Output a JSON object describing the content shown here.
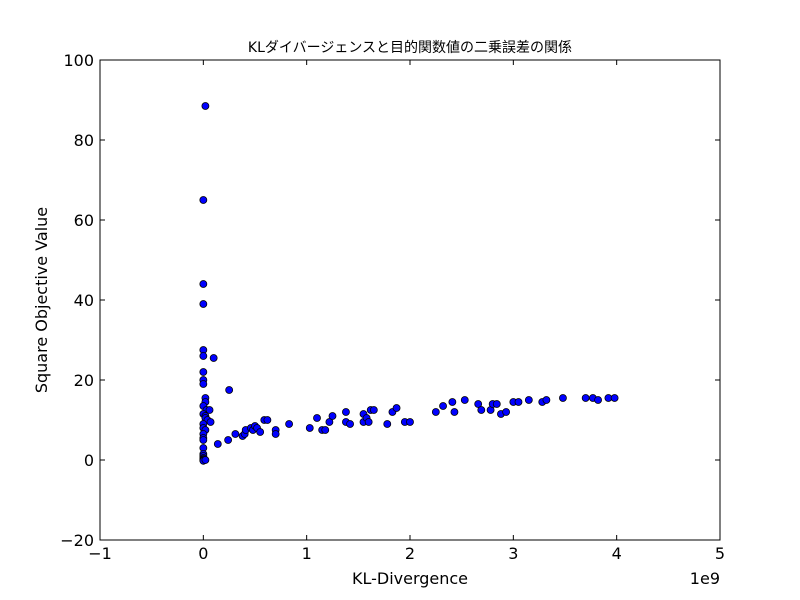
{
  "chart_data": {
    "type": "scatter",
    "title": "KLダイバージェンスと目的関数値の二乗誤差の関係",
    "xlabel": "KL-Divergence",
    "ylabel": "Square Objective Value",
    "x_offset_label": "1e9",
    "xlim": [
      -1,
      5
    ],
    "ylim": [
      -20,
      100
    ],
    "xticks": [
      -1,
      0,
      1,
      2,
      3,
      4,
      5
    ],
    "yticks": [
      -20,
      0,
      20,
      40,
      60,
      80,
      100
    ],
    "xtick_labels": [
      "−1",
      "0",
      "1",
      "2",
      "3",
      "4",
      "5"
    ],
    "ytick_labels": [
      "−20",
      "0",
      "20",
      "40",
      "60",
      "80",
      "100"
    ],
    "grid": false,
    "marker_color": "#0000ff",
    "marker_edge": "#000000",
    "points": [
      [
        0.02,
        88.5
      ],
      [
        0.0,
        65.0
      ],
      [
        0.0,
        44.0
      ],
      [
        0.0,
        39.0
      ],
      [
        0.0,
        27.5
      ],
      [
        0.0,
        26.0
      ],
      [
        0.1,
        25.5
      ],
      [
        0.0,
        22.0
      ],
      [
        0.0,
        20.0
      ],
      [
        0.0,
        19.0
      ],
      [
        0.25,
        17.5
      ],
      [
        0.02,
        15.5
      ],
      [
        0.02,
        14.5
      ],
      [
        0.0,
        13.5
      ],
      [
        0.03,
        12.5
      ],
      [
        0.06,
        12.5
      ],
      [
        0.0,
        11.5
      ],
      [
        0.02,
        11.0
      ],
      [
        0.02,
        10.5
      ],
      [
        0.04,
        10.0
      ],
      [
        0.07,
        9.5
      ],
      [
        0.0,
        9.0
      ],
      [
        0.0,
        8.0
      ],
      [
        0.02,
        7.5
      ],
      [
        0.0,
        6.5
      ],
      [
        0.0,
        5.5
      ],
      [
        0.0,
        5.0
      ],
      [
        0.0,
        3.0
      ],
      [
        0.0,
        1.5
      ],
      [
        0.0,
        1.0
      ],
      [
        0.0,
        0.5
      ],
      [
        0.0,
        0.2
      ],
      [
        0.0,
        0.0
      ],
      [
        0.0,
        -0.2
      ],
      [
        0.02,
        0.0
      ],
      [
        0.14,
        4.0
      ],
      [
        0.24,
        5.0
      ],
      [
        0.31,
        6.5
      ],
      [
        0.38,
        6.0
      ],
      [
        0.4,
        6.5
      ],
      [
        0.41,
        7.5
      ],
      [
        0.46,
        8.0
      ],
      [
        0.48,
        7.5
      ],
      [
        0.5,
        8.5
      ],
      [
        0.52,
        8.0
      ],
      [
        0.55,
        7.0
      ],
      [
        0.59,
        10.0
      ],
      [
        0.62,
        10.0
      ],
      [
        0.7,
        7.5
      ],
      [
        0.7,
        6.5
      ],
      [
        0.83,
        9.0
      ],
      [
        1.03,
        8.0
      ],
      [
        1.1,
        10.5
      ],
      [
        1.15,
        7.5
      ],
      [
        1.18,
        7.5
      ],
      [
        1.22,
        9.5
      ],
      [
        1.25,
        11.0
      ],
      [
        1.38,
        12.0
      ],
      [
        1.38,
        9.5
      ],
      [
        1.42,
        9.0
      ],
      [
        1.55,
        11.5
      ],
      [
        1.55,
        9.5
      ],
      [
        1.58,
        10.5
      ],
      [
        1.6,
        9.5
      ],
      [
        1.62,
        12.5
      ],
      [
        1.65,
        12.5
      ],
      [
        1.78,
        9.0
      ],
      [
        1.83,
        12.0
      ],
      [
        1.87,
        13.0
      ],
      [
        1.95,
        9.5
      ],
      [
        2.0,
        9.5
      ],
      [
        2.25,
        12.0
      ],
      [
        2.32,
        13.5
      ],
      [
        2.41,
        14.5
      ],
      [
        2.43,
        12.0
      ],
      [
        2.53,
        15.0
      ],
      [
        2.66,
        14.0
      ],
      [
        2.69,
        12.5
      ],
      [
        2.78,
        12.5
      ],
      [
        2.8,
        14.0
      ],
      [
        2.84,
        14.0
      ],
      [
        2.88,
        11.5
      ],
      [
        2.93,
        12.0
      ],
      [
        3.0,
        14.5
      ],
      [
        3.05,
        14.5
      ],
      [
        3.15,
        15.0
      ],
      [
        3.28,
        14.5
      ],
      [
        3.32,
        15.0
      ],
      [
        3.48,
        15.5
      ],
      [
        3.7,
        15.5
      ],
      [
        3.77,
        15.5
      ],
      [
        3.82,
        15.0
      ],
      [
        3.92,
        15.5
      ],
      [
        3.98,
        15.5
      ]
    ]
  }
}
